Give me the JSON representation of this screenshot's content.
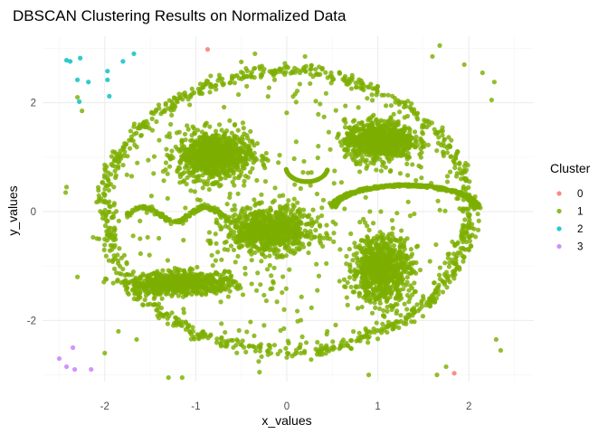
{
  "chart_data": {
    "type": "scatter",
    "title": "DBSCAN Clustering Results on Normalized Data",
    "xlabel": "x_values",
    "ylabel": "y_values",
    "xlim": [
      -2.55,
      2.55
    ],
    "ylim": [
      -3.1,
      3.1
    ],
    "x_ticks": [
      -2,
      -1,
      0,
      1,
      2
    ],
    "y_ticks": [
      -2,
      0,
      2
    ],
    "x_tick_labels": [
      "-2",
      "-1",
      "0",
      "1",
      "2"
    ],
    "y_tick_labels": [
      "-2",
      "0",
      "2"
    ],
    "grid": true,
    "legend_position": "right",
    "legend_title": "Cluster",
    "series": [
      {
        "name": "0",
        "color": "#F8766D",
        "points": [
          [
            -0.87,
            2.98
          ],
          [
            1.84,
            -2.97
          ]
        ]
      },
      {
        "name": "1",
        "color": "#7CAE00",
        "description_points": [
          [
            -0.9,
            1.0
          ],
          [
            1.02,
            1.32
          ],
          [
            -0.18,
            -0.35
          ],
          [
            1.04,
            -1.05
          ],
          [
            -1.18,
            -1.3
          ],
          [
            0.0,
            2.6
          ],
          [
            0.0,
            -2.6
          ],
          [
            -2.15,
            0.0
          ],
          [
            2.1,
            0.0
          ],
          [
            0.2,
            0.6
          ],
          [
            1.0,
            0.3
          ],
          [
            -1.2,
            -0.1
          ]
        ],
        "outliers": [
          [
            -2.42,
            0.45
          ],
          [
            -2.43,
            0.35
          ],
          [
            -2.25,
            1.85
          ],
          [
            -2.3,
            -1.2
          ],
          [
            -2.3,
            2.1
          ],
          [
            2.15,
            2.55
          ],
          [
            2.28,
            2.38
          ],
          [
            2.25,
            2.05
          ],
          [
            2.3,
            -2.35
          ],
          [
            2.35,
            -2.55
          ],
          [
            -1.65,
            -2.35
          ],
          [
            -1.3,
            -3.05
          ],
          [
            -1.15,
            -3.05
          ],
          [
            -0.3,
            -2.95
          ],
          [
            0.9,
            -3.0
          ],
          [
            1.68,
            3.05
          ],
          [
            1.6,
            2.85
          ],
          [
            -0.35,
            2.9
          ],
          [
            0.2,
            2.85
          ],
          [
            -0.5,
            2.75
          ],
          [
            1.65,
            -3.0
          ],
          [
            1.75,
            -2.85
          ],
          [
            -2.0,
            -2.6
          ],
          [
            1.95,
            2.7
          ],
          [
            -1.85,
            -2.2
          ]
        ]
      },
      {
        "name": "2",
        "color": "#00BFC4",
        "points": [
          [
            -2.42,
            2.78
          ],
          [
            -2.38,
            2.76
          ],
          [
            -2.27,
            2.82
          ],
          [
            -1.97,
            2.58
          ],
          [
            -1.68,
            2.9
          ],
          [
            -1.8,
            2.76
          ],
          [
            -2.18,
            2.38
          ],
          [
            -2.3,
            2.42
          ],
          [
            -1.97,
            2.42
          ],
          [
            -2.28,
            2.02
          ],
          [
            -1.95,
            2.12
          ]
        ]
      },
      {
        "name": "3",
        "color": "#C77CFF",
        "points": [
          [
            -2.5,
            -2.7
          ],
          [
            -2.35,
            -2.5
          ],
          [
            -2.42,
            -2.85
          ],
          [
            -2.33,
            -2.9
          ],
          [
            -2.15,
            -2.9
          ]
        ]
      }
    ]
  }
}
